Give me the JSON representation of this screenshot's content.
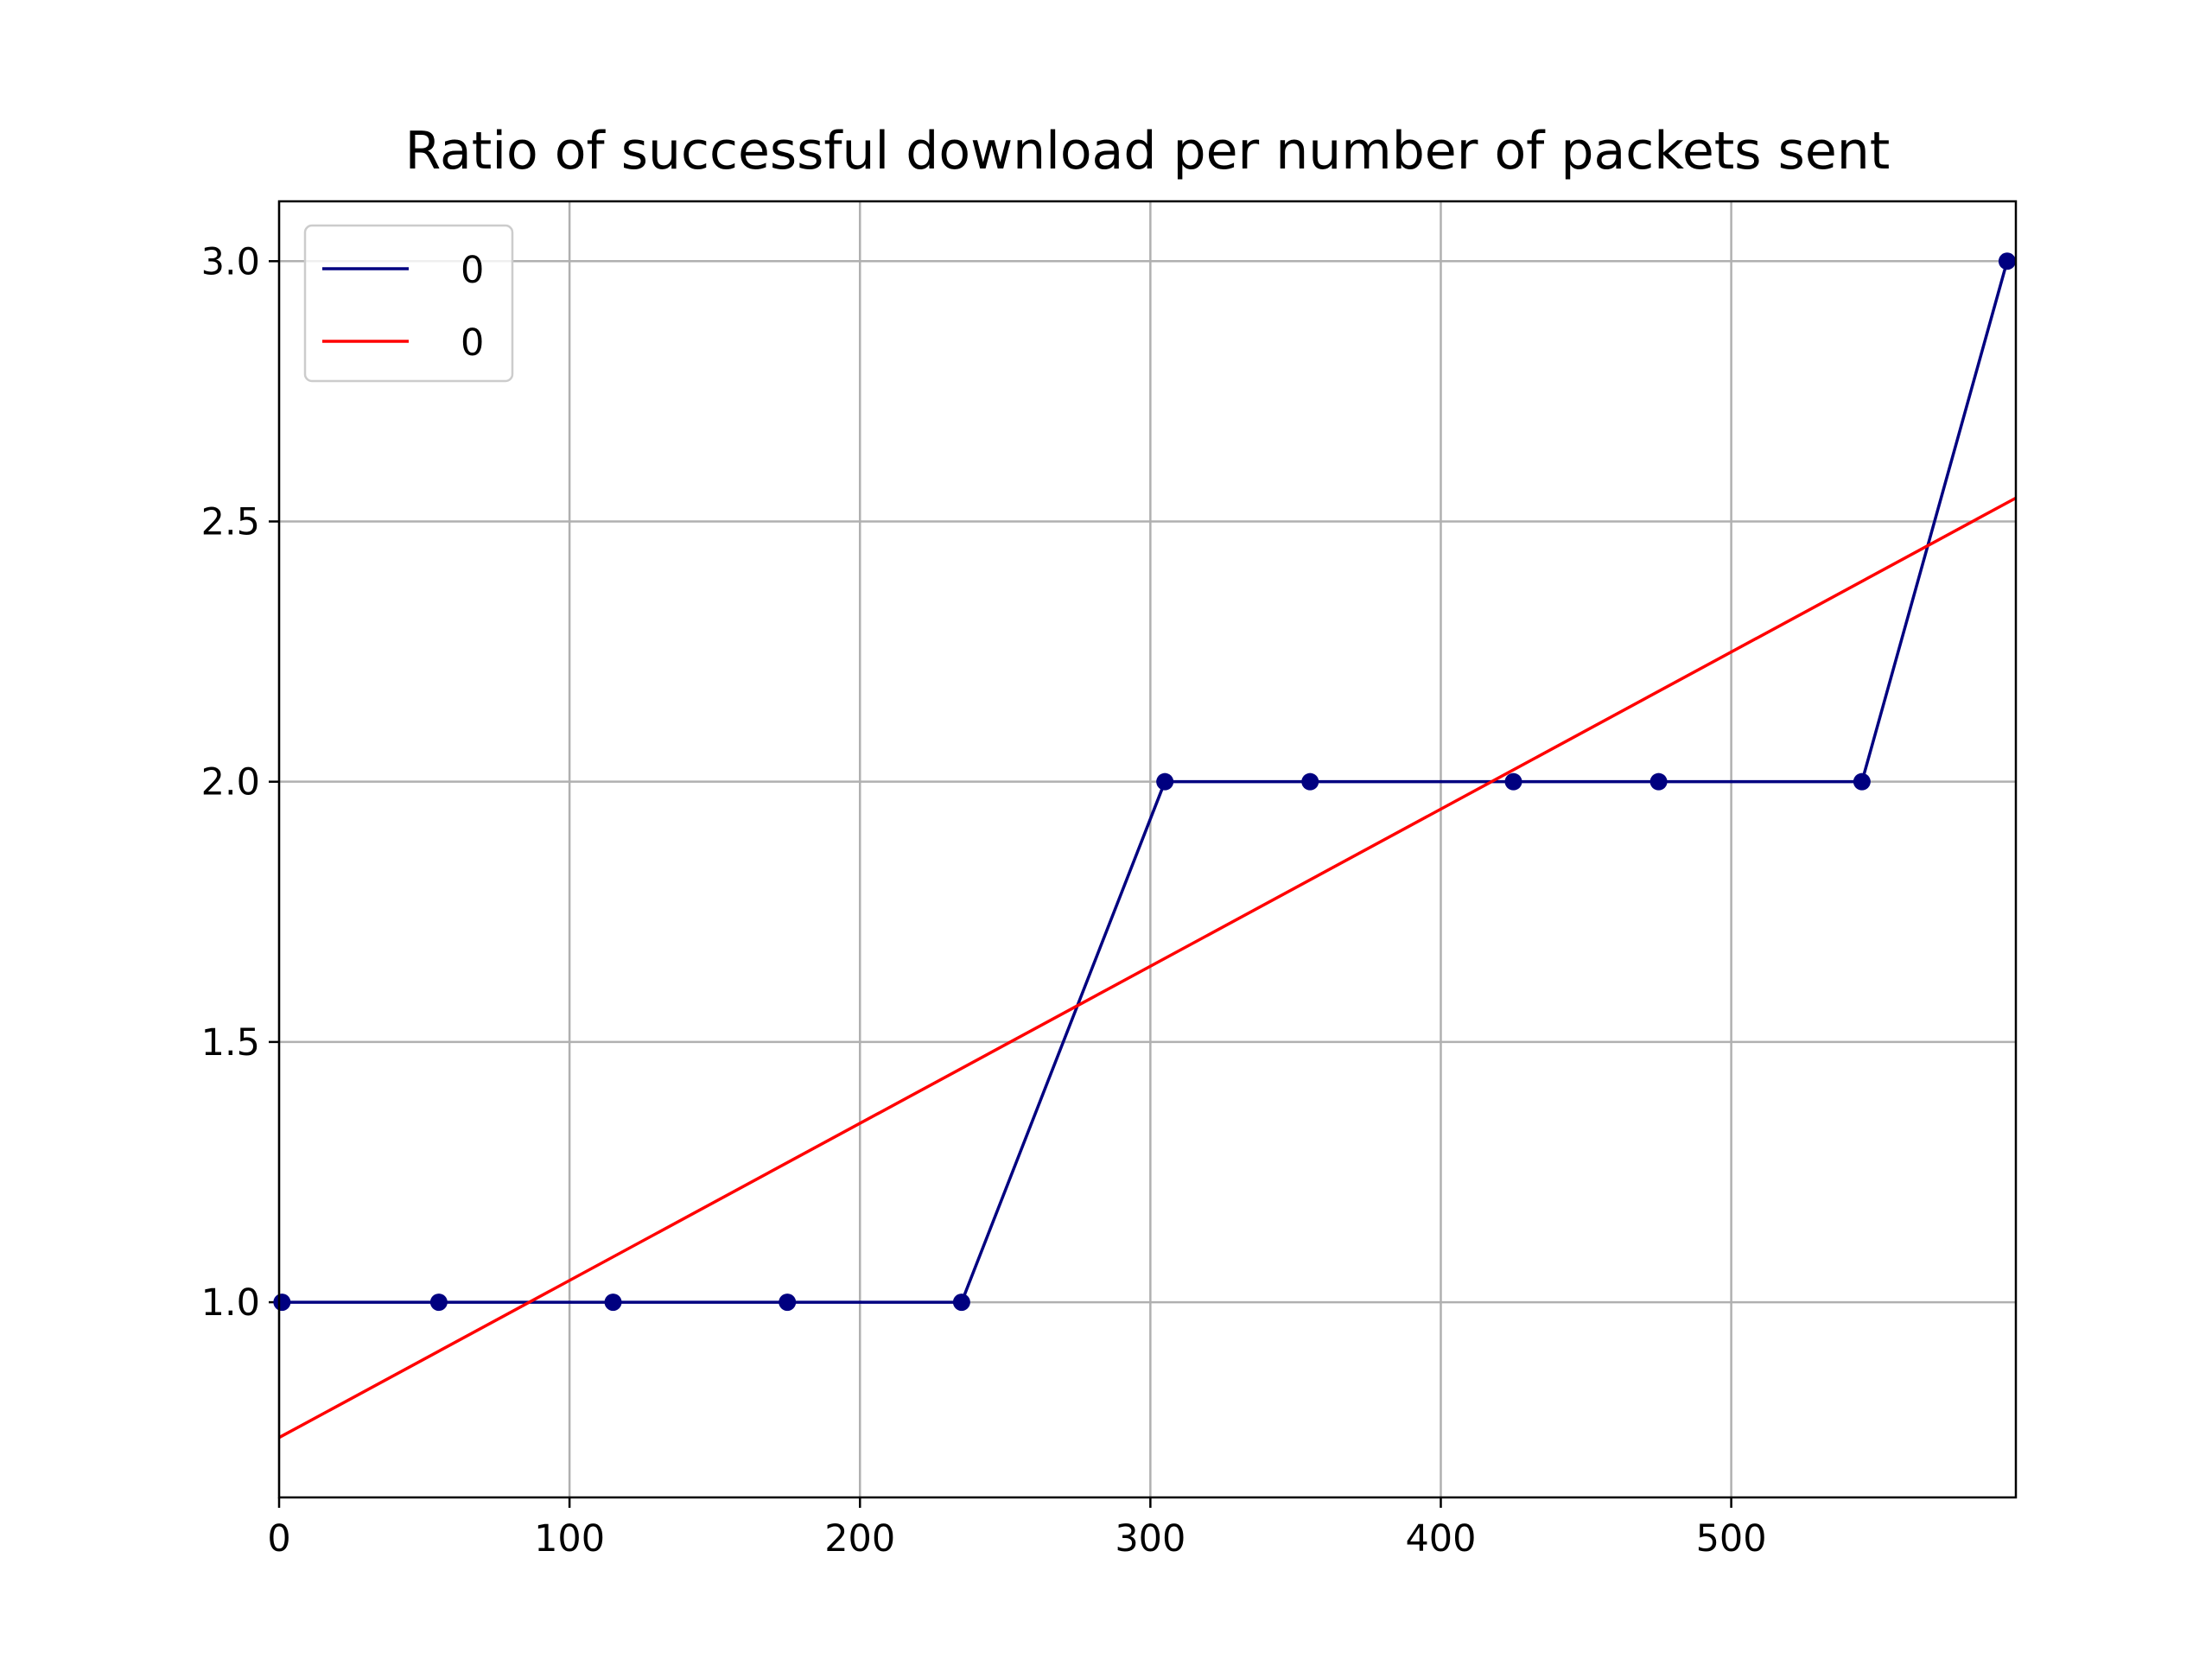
{
  "chart_data": {
    "type": "line",
    "title": "Ratio of successful download per number of packets sent",
    "xlabel": "",
    "ylabel": "",
    "xlim": [
      0,
      598
    ],
    "ylim": [
      0.625,
      3.115
    ],
    "x_ticks": [
      0,
      100,
      200,
      300,
      400,
      500
    ],
    "y_ticks": [
      1.0,
      1.5,
      2.0,
      2.5,
      3.0
    ],
    "x_tick_labels": [
      "0",
      "100",
      "200",
      "300",
      "400",
      "500"
    ],
    "y_tick_labels": [
      "1.0",
      "1.5",
      "2.0",
      "2.5",
      "3.0"
    ],
    "grid": true,
    "legend_position": "upper-left",
    "series": [
      {
        "name": "0",
        "color": "#000080",
        "markers": true,
        "x": [
          1,
          55,
          115,
          175,
          235,
          305,
          355,
          425,
          475,
          545,
          595
        ],
        "y": [
          1,
          1,
          1,
          1,
          1,
          2,
          2,
          2,
          2,
          2,
          3
        ]
      },
      {
        "name": "0",
        "color": "#ff0000",
        "markers": false,
        "x": [
          0,
          598
        ],
        "y": [
          0.74,
          2.545
        ]
      }
    ]
  }
}
